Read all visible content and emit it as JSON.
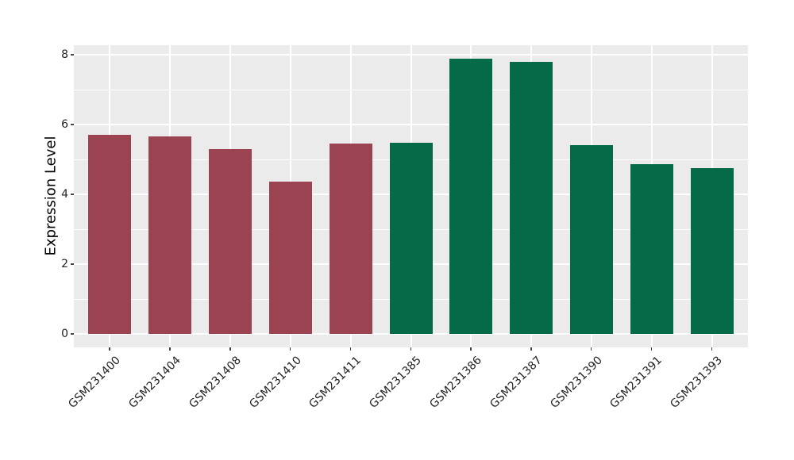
{
  "figure": {
    "background_color": "#FFFFFF",
    "panel_background_color": "#EBEBEB",
    "grid_color": "#FFFFFF",
    "tick_color": "#444444",
    "text_color": "#222222"
  },
  "chart_data": {
    "type": "bar",
    "title": "",
    "xlabel": "",
    "ylabel": "Expression Level",
    "categories": [
      "GSM231400",
      "GSM231404",
      "GSM231408",
      "GSM231410",
      "GSM231411",
      "GSM231385",
      "GSM231386",
      "GSM231387",
      "GSM231390",
      "GSM231391",
      "GSM231393"
    ],
    "values": [
      5.7,
      5.65,
      5.3,
      4.36,
      5.46,
      5.47,
      7.88,
      7.8,
      5.42,
      4.86,
      4.75
    ],
    "bar_colors": [
      "#9C4351",
      "#9C4351",
      "#9C4351",
      "#9C4351",
      "#9C4351",
      "#056A47",
      "#056A47",
      "#056A47",
      "#056A47",
      "#056A47",
      "#056A47"
    ],
    "color_groups": [
      {
        "color": "#9C4351",
        "categories": [
          "GSM231400",
          "GSM231404",
          "GSM231408",
          "GSM231410",
          "GSM231411"
        ]
      },
      {
        "color": "#056A47",
        "categories": [
          "GSM231385",
          "GSM231386",
          "GSM231387",
          "GSM231390",
          "GSM231391",
          "GSM231393"
        ]
      }
    ],
    "y_ticks": [
      0,
      2,
      4,
      6,
      8
    ],
    "y_minor_ticks": [
      1,
      3,
      5,
      7
    ],
    "ylim": [
      0,
      8.27
    ],
    "grid": true,
    "legend_position": "none",
    "x_tick_rotation_deg": 45,
    "bar_width_fraction": 0.71
  }
}
